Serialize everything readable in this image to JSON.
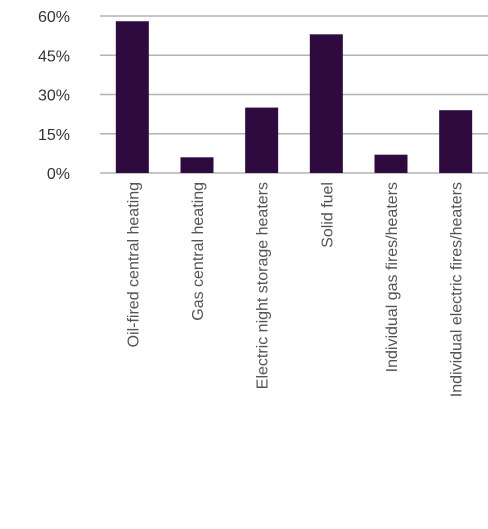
{
  "chart_data": {
    "type": "bar",
    "title": "",
    "xlabel": "",
    "ylabel": "",
    "categories": [
      "Oil-fired central heating",
      "Gas central heating",
      "Electric night storage heaters",
      "Solid fuel",
      "Individual gas fires/heaters",
      "Individual electric fires/heaters"
    ],
    "values": [
      58,
      6,
      25,
      53,
      7,
      24
    ],
    "ylim": [
      0,
      60
    ],
    "yticks": [
      0,
      15,
      30,
      45,
      60
    ],
    "ytick_labels": [
      "0%",
      "15%",
      "30%",
      "45%",
      "60%"
    ],
    "grid": true,
    "legend": "none",
    "colors": {
      "bar": "#2e0a3e",
      "grid": "#b3b3b3"
    }
  }
}
